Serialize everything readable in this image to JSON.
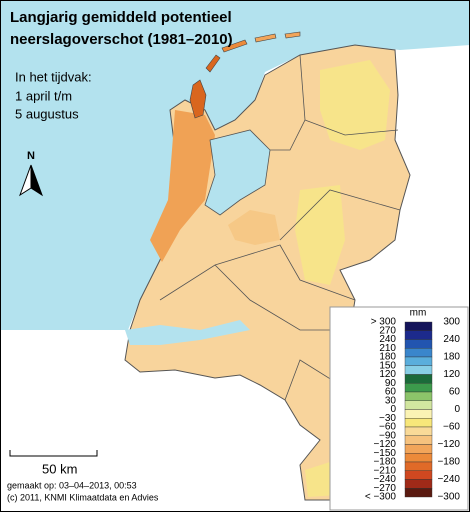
{
  "title": [
    "Langjarig gemiddeld potentieel",
    "neerslagoverschot (1981–2010)"
  ],
  "period": [
    "In het tijdvak:",
    "1 april t/m",
    "5 augustus"
  ],
  "north": "N",
  "scale": "50 km",
  "footer": [
    "gemaakt op: 03–04–2013, 00:53",
    "(c) 2011, KNMI Klimaatdata en Advies"
  ],
  "legend": {
    "unit": "mm",
    "left_labels": [
      "> 300",
      "270",
      "240",
      "210",
      "180",
      "150",
      "120",
      "90",
      "60",
      "30",
      "0",
      "−30",
      "−60",
      "−90",
      "−120",
      "−150",
      "−180",
      "−210",
      "−240",
      "−270",
      "< −300"
    ],
    "right_labels": [
      "300",
      "240",
      "180",
      "120",
      "60",
      "0",
      "−60",
      "−120",
      "−180",
      "−240",
      "−300"
    ],
    "colors": [
      "#14145a",
      "#1c2a8c",
      "#2255b0",
      "#3a86cc",
      "#5aaedc",
      "#88cfe6",
      "#1b6b3a",
      "#3c9a4c",
      "#8cc46a",
      "#d2e6a0",
      "#fbf3b4",
      "#f8e77a",
      "#f9da98",
      "#f6c27e",
      "#f2a55a",
      "#ec8a3a",
      "#e06a28",
      "#d04820",
      "#a02a18",
      "#5a1a10"
    ]
  }
}
